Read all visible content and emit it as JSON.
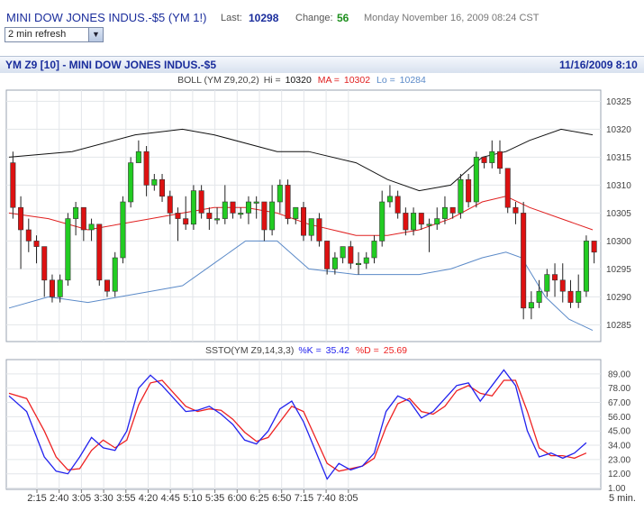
{
  "header": {
    "title": "MINI DOW JONES INDUS.-$5 (YM 1!)",
    "last_label": "Last:",
    "last_value": "10298",
    "change_label": "Change:",
    "change_value": "56",
    "datetime": "Monday November 16, 2009 08:24 CST",
    "refresh_selected": "2 min refresh"
  },
  "chart_bar": {
    "name": "YM Z9 [10] - MINI DOW JONES INDUS.-$5",
    "date": "11/16/2009 8:10"
  },
  "colors": {
    "up": "#22cc22",
    "down": "#dd1111",
    "ma": "#e02020",
    "upper_band": "#111111",
    "lower_band": "#5b8ac8",
    "k_line": "#2222ee",
    "d_line": "#ee2222"
  },
  "chart_data": [
    {
      "type": "candlestick",
      "legend": {
        "name": "BOLL (YM Z9,20,2)",
        "hi_label": "Hi =",
        "hi_value": "10320",
        "ma_label": "MA =",
        "ma_value": "10302",
        "lo_label": "Lo =",
        "lo_value": "10284"
      },
      "ylim": [
        10282,
        10327
      ],
      "yticks": [
        "10325",
        "10320",
        "10315",
        "10310",
        "10305",
        "10300",
        "10295",
        "10290",
        "10285"
      ],
      "grid": true,
      "candles": [
        [
          10314,
          10306,
          10316,
          10304
        ],
        [
          10306,
          10302,
          10308,
          10295
        ],
        [
          10302,
          10300,
          10304,
          10298
        ],
        [
          10300,
          10299,
          10301,
          10296
        ],
        [
          10299,
          10293,
          10299,
          10290
        ],
        [
          10293,
          10290,
          10294,
          10289
        ],
        [
          10290,
          10293,
          10294,
          10289
        ],
        [
          10293,
          10304,
          10305,
          10292
        ],
        [
          10304,
          10306,
          10307,
          10301
        ],
        [
          10306,
          10302,
          10306,
          10300
        ],
        [
          10302,
          10303,
          10304,
          10300
        ],
        [
          10303,
          10293,
          10303,
          10292
        ],
        [
          10293,
          10291,
          10293,
          10290
        ],
        [
          10291,
          10297,
          10298,
          10290
        ],
        [
          10297,
          10307,
          10308,
          10296
        ],
        [
          10307,
          10314,
          10315,
          10306
        ],
        [
          10314,
          10316,
          10318,
          10314
        ],
        [
          10316,
          10310,
          10317,
          10308
        ],
        [
          10310,
          10311,
          10312,
          10309
        ],
        [
          10311,
          10308,
          10312,
          10307
        ],
        [
          10308,
          10305,
          10309,
          10303
        ],
        [
          10305,
          10304,
          10306,
          10300
        ],
        [
          10304,
          10303,
          10308,
          10302
        ],
        [
          10303,
          10309,
          10310,
          10302
        ],
        [
          10309,
          10305,
          10310,
          10304
        ],
        [
          10305,
          10304,
          10306,
          10302
        ],
        [
          10304,
          10304,
          10306,
          10303
        ],
        [
          10304,
          10307,
          10310,
          10303
        ],
        [
          10307,
          10305,
          10307,
          10304
        ],
        [
          10305,
          10305,
          10306,
          10304
        ],
        [
          10305,
          10307,
          10308,
          10303
        ],
        [
          10307,
          10307,
          10308,
          10304
        ],
        [
          10307,
          10302,
          10307,
          10300
        ],
        [
          10302,
          10307,
          10310,
          10301
        ],
        [
          10307,
          10310,
          10311,
          10305
        ],
        [
          10310,
          10304,
          10311,
          10303
        ],
        [
          10304,
          10306,
          10306,
          10303
        ],
        [
          10306,
          10301,
          10307,
          10300
        ],
        [
          10301,
          10304,
          10304,
          10300
        ],
        [
          10304,
          10300,
          10305,
          10299
        ],
        [
          10300,
          10295,
          10300,
          10294
        ],
        [
          10295,
          10297,
          10298,
          10294
        ],
        [
          10297,
          10299,
          10299,
          10296
        ],
        [
          10299,
          10296,
          10300,
          10295
        ],
        [
          10296,
          10296,
          10298,
          10294
        ],
        [
          10296,
          10297,
          10298,
          10295
        ],
        [
          10297,
          10300,
          10301,
          10296
        ],
        [
          10300,
          10307,
          10309,
          10299
        ],
        [
          10307,
          10308,
          10310,
          10306
        ],
        [
          10308,
          10305,
          10309,
          10304
        ],
        [
          10305,
          10302,
          10306,
          10301
        ],
        [
          10302,
          10305,
          10306,
          10301
        ],
        [
          10305,
          10303,
          10305,
          10302
        ],
        [
          10303,
          10303,
          10304,
          10298
        ],
        [
          10303,
          10304,
          10306,
          10302
        ],
        [
          10304,
          10306,
          10308,
          10303
        ],
        [
          10306,
          10305,
          10306,
          10304
        ],
        [
          10305,
          10311,
          10312,
          10304
        ],
        [
          10311,
          10307,
          10312,
          10306
        ],
        [
          10307,
          10315,
          10316,
          10306
        ],
        [
          10315,
          10314,
          10315,
          10313
        ],
        [
          10314,
          10316,
          10318,
          10313
        ],
        [
          10316,
          10313,
          10318,
          10312
        ],
        [
          10313,
          10306,
          10313,
          10305
        ],
        [
          10306,
          10305,
          10307,
          10303
        ],
        [
          10305,
          10288,
          10307,
          10286
        ],
        [
          10288,
          10289,
          10291,
          10286
        ],
        [
          10289,
          10291,
          10293,
          10288
        ],
        [
          10291,
          10294,
          10295,
          10290
        ],
        [
          10294,
          10293,
          10296,
          10290
        ],
        [
          10293,
          10291,
          10296,
          10289
        ],
        [
          10291,
          10289,
          10293,
          10288
        ],
        [
          10289,
          10291,
          10294,
          10288
        ],
        [
          10291,
          10300,
          10301,
          10290
        ],
        [
          10300,
          10298,
          10300,
          10296
        ]
      ],
      "upper_band": [
        [
          0,
          10315
        ],
        [
          8,
          10316
        ],
        [
          16,
          10319
        ],
        [
          22,
          10320
        ],
        [
          26,
          10319
        ],
        [
          34,
          10316
        ],
        [
          38,
          10316
        ],
        [
          44,
          10314
        ],
        [
          48,
          10311
        ],
        [
          52,
          10309
        ],
        [
          56,
          10310
        ],
        [
          60,
          10315
        ],
        [
          63,
          10316
        ],
        [
          66,
          10318
        ],
        [
          70,
          10320
        ],
        [
          74,
          10319
        ]
      ],
      "moving_average": [
        [
          0,
          10305
        ],
        [
          5,
          10304
        ],
        [
          10,
          10302
        ],
        [
          14,
          10303
        ],
        [
          18,
          10304
        ],
        [
          22,
          10305
        ],
        [
          26,
          10306
        ],
        [
          30,
          10306
        ],
        [
          34,
          10305
        ],
        [
          38,
          10303
        ],
        [
          44,
          10301
        ],
        [
          48,
          10301
        ],
        [
          52,
          10302
        ],
        [
          56,
          10304
        ],
        [
          60,
          10307
        ],
        [
          63,
          10308
        ],
        [
          66,
          10306
        ],
        [
          70,
          10304
        ],
        [
          74,
          10302
        ]
      ],
      "lower_band": [
        [
          0,
          10288
        ],
        [
          5,
          10290
        ],
        [
          10,
          10289
        ],
        [
          14,
          10290
        ],
        [
          18,
          10291
        ],
        [
          22,
          10292
        ],
        [
          26,
          10296
        ],
        [
          30,
          10300
        ],
        [
          34,
          10300
        ],
        [
          38,
          10295
        ],
        [
          44,
          10294
        ],
        [
          48,
          10294
        ],
        [
          52,
          10294
        ],
        [
          56,
          10295
        ],
        [
          60,
          10297
        ],
        [
          63,
          10298
        ],
        [
          65,
          10297
        ],
        [
          68,
          10290
        ],
        [
          71,
          10286
        ],
        [
          74,
          10284
        ]
      ]
    },
    {
      "type": "line",
      "legend": {
        "name": "SSTO(YM Z9,14,3,3)",
        "k_label": "%K =",
        "k_value": "35.42",
        "d_label": "%D =",
        "d_value": "25.69"
      },
      "ylim": [
        0,
        100
      ],
      "yticks": [
        "89.00",
        "78.00",
        "67.00",
        "56.00",
        "45.00",
        "34.00",
        "23.00",
        "12.00",
        "1.00"
      ],
      "grid": true,
      "series": [
        {
          "name": "%K",
          "values": [
            [
              0,
              72
            ],
            [
              3,
              60
            ],
            [
              6,
              25
            ],
            [
              8,
              14
            ],
            [
              10,
              12
            ],
            [
              12,
              25
            ],
            [
              14,
              40
            ],
            [
              16,
              32
            ],
            [
              18,
              30
            ],
            [
              20,
              45
            ],
            [
              22,
              78
            ],
            [
              24,
              88
            ],
            [
              26,
              80
            ],
            [
              28,
              70
            ],
            [
              30,
              60
            ],
            [
              32,
              61
            ],
            [
              34,
              64
            ],
            [
              36,
              58
            ],
            [
              38,
              50
            ],
            [
              40,
              38
            ],
            [
              42,
              35
            ],
            [
              44,
              45
            ],
            [
              46,
              62
            ],
            [
              48,
              68
            ],
            [
              50,
              52
            ],
            [
              52,
              30
            ],
            [
              54,
              8
            ],
            [
              56,
              20
            ],
            [
              58,
              15
            ],
            [
              60,
              18
            ],
            [
              62,
              28
            ],
            [
              64,
              60
            ],
            [
              66,
              72
            ],
            [
              68,
              68
            ],
            [
              70,
              55
            ],
            [
              72,
              60
            ],
            [
              74,
              70
            ],
            [
              76,
              80
            ],
            [
              78,
              82
            ],
            [
              80,
              68
            ],
            [
              82,
              80
            ],
            [
              84,
              92
            ],
            [
              86,
              80
            ],
            [
              88,
              45
            ],
            [
              90,
              25
            ],
            [
              92,
              28
            ],
            [
              94,
              24
            ],
            [
              96,
              28
            ],
            [
              98,
              36
            ]
          ]
        },
        {
          "name": "%D",
          "values": [
            [
              0,
              74
            ],
            [
              3,
              70
            ],
            [
              6,
              45
            ],
            [
              8,
              25
            ],
            [
              10,
              15
            ],
            [
              12,
              16
            ],
            [
              14,
              30
            ],
            [
              16,
              38
            ],
            [
              18,
              32
            ],
            [
              20,
              38
            ],
            [
              22,
              65
            ],
            [
              24,
              82
            ],
            [
              26,
              84
            ],
            [
              28,
              74
            ],
            [
              30,
              64
            ],
            [
              32,
              60
            ],
            [
              34,
              62
            ],
            [
              36,
              61
            ],
            [
              38,
              54
            ],
            [
              40,
              44
            ],
            [
              42,
              37
            ],
            [
              44,
              40
            ],
            [
              46,
              52
            ],
            [
              48,
              64
            ],
            [
              50,
              60
            ],
            [
              52,
              40
            ],
            [
              54,
              20
            ],
            [
              56,
              14
            ],
            [
              58,
              16
            ],
            [
              60,
              18
            ],
            [
              62,
              24
            ],
            [
              64,
              48
            ],
            [
              66,
              66
            ],
            [
              68,
              70
            ],
            [
              70,
              60
            ],
            [
              72,
              58
            ],
            [
              74,
              64
            ],
            [
              76,
              76
            ],
            [
              78,
              80
            ],
            [
              80,
              74
            ],
            [
              82,
              72
            ],
            [
              84,
              84
            ],
            [
              86,
              84
            ],
            [
              88,
              60
            ],
            [
              90,
              32
            ],
            [
              92,
              26
            ],
            [
              94,
              26
            ],
            [
              96,
              24
            ],
            [
              98,
              28
            ]
          ]
        }
      ]
    }
  ],
  "x_axis": {
    "labels": [
      "2:15",
      "2:40",
      "3:05",
      "3:30",
      "3:55",
      "4:20",
      "4:45",
      "5:10",
      "5:35",
      "6:00",
      "6:25",
      "6:50",
      "7:15",
      "7:40",
      "8:05"
    ],
    "unit": "5 min."
  }
}
